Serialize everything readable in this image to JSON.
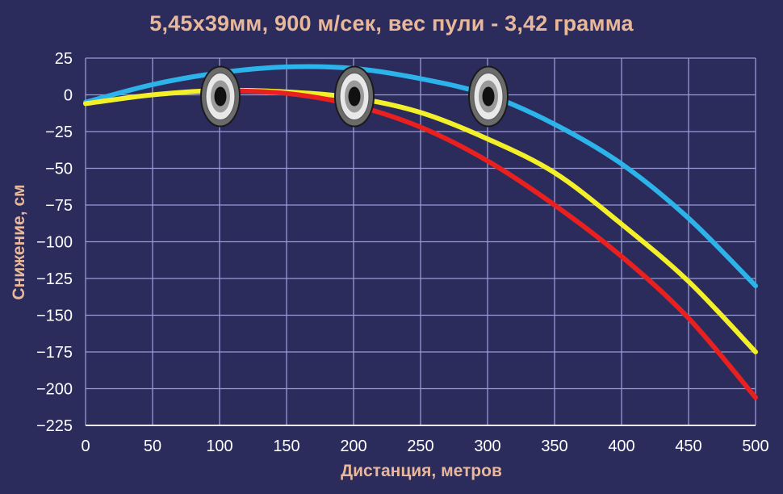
{
  "chart_data": {
    "type": "line",
    "title": "5,45x39мм, 900 м/сек, вес пули - 3,42 грамма",
    "xlabel": "Дистанция, метров",
    "ylabel": "Снижение, см",
    "xlim": [
      0,
      500
    ],
    "ylim": [
      -225,
      25
    ],
    "x_ticks": [
      0,
      50,
      100,
      150,
      200,
      250,
      300,
      350,
      400,
      450,
      500
    ],
    "y_ticks": [
      25,
      0,
      -25,
      -50,
      -75,
      -100,
      -125,
      -150,
      -175,
      -200,
      -225
    ],
    "grid": true,
    "series": [
      {
        "color": "#2bb3ea",
        "x": [
          0,
          50,
          100,
          150,
          200,
          250,
          300,
          350,
          400,
          450,
          500
        ],
        "y": [
          -5,
          7,
          15,
          19,
          18,
          11,
          0,
          -20,
          -47,
          -84,
          -130
        ]
      },
      {
        "color": "#f3f02a",
        "x": [
          0,
          50,
          100,
          150,
          200,
          250,
          300,
          350,
          400,
          450,
          500
        ],
        "y": [
          -6,
          0,
          3,
          2,
          -2,
          -12,
          -30,
          -53,
          -88,
          -127,
          -175
        ]
      },
      {
        "color": "#e8201f",
        "x": [
          100,
          150,
          200,
          250,
          300,
          350,
          400,
          450,
          500
        ],
        "y": [
          3,
          1,
          -7,
          -22,
          -45,
          -75,
          -110,
          -152,
          -206
        ],
        "comment_start_only": true
      }
    ],
    "targets_at_x": [
      100,
      200,
      300
    ]
  },
  "colors": {
    "background": "#2b2c5c",
    "grid": "#9a9ad6",
    "title": "#e9b89a"
  }
}
